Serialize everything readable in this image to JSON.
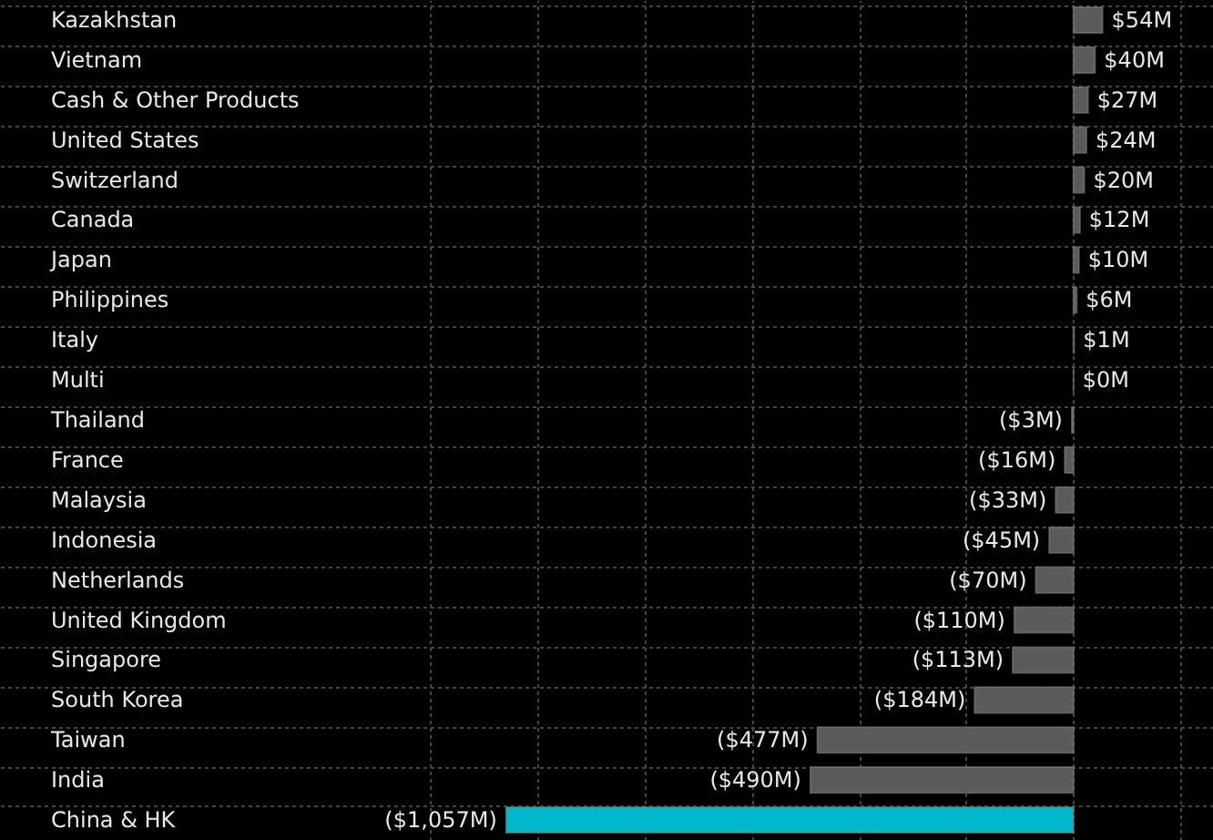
{
  "chart_data": {
    "type": "bar",
    "orientation": "horizontal",
    "categories": [
      "Kazakhstan",
      "Vietnam",
      "Cash & Other Products",
      "United States",
      "Switzerland",
      "Canada",
      "Japan",
      "Philippines",
      "Italy",
      "Multi",
      "Thailand",
      "France",
      "Malaysia",
      "Indonesia",
      "Netherlands",
      "United Kingdom",
      "Singapore",
      "South Korea",
      "Taiwan",
      "India",
      "China & HK"
    ],
    "values": [
      54,
      40,
      27,
      24,
      20,
      12,
      10,
      6,
      1,
      0,
      -3,
      -16,
      -33,
      -45,
      -70,
      -110,
      -113,
      -184,
      -477,
      -490,
      -1057
    ],
    "value_labels": [
      "$54M",
      "$40M",
      "$27M",
      "$24M",
      "$20M",
      "$12M",
      "$10M",
      "$6M",
      "$1M",
      "$0M",
      "($3M)",
      "($16M)",
      "($33M)",
      "($45M)",
      "($70M)",
      "($110M)",
      "($113M)",
      "($184M)",
      "($477M)",
      "($490M)",
      "($1,057M)"
    ],
    "colors": [
      "#5a5a5a",
      "#5a5a5a",
      "#5a5a5a",
      "#5a5a5a",
      "#5a5a5a",
      "#5a5a5a",
      "#5a5a5a",
      "#5a5a5a",
      "#5a5a5a",
      "#5a5a5a",
      "#5a5a5a",
      "#5a5a5a",
      "#5a5a5a",
      "#5a5a5a",
      "#5a5a5a",
      "#5a5a5a",
      "#5a5a5a",
      "#5a5a5a",
      "#5a5a5a",
      "#5a5a5a",
      "#00b8cc"
    ],
    "xlim": [
      -2000,
      260
    ],
    "xticks": [
      {
        "value": -1200,
        "label": null
      },
      {
        "value": -1000,
        "label": null
      },
      {
        "value": -800,
        "label": null
      },
      {
        "value": -600,
        "label": null
      },
      {
        "value": -400,
        "label": null
      },
      {
        "value": -200,
        "label": null
      },
      {
        "value": 0,
        "label": null
      },
      {
        "value": 200,
        "label": null
      }
    ],
    "grid": true,
    "tick_labels": "y"
  }
}
